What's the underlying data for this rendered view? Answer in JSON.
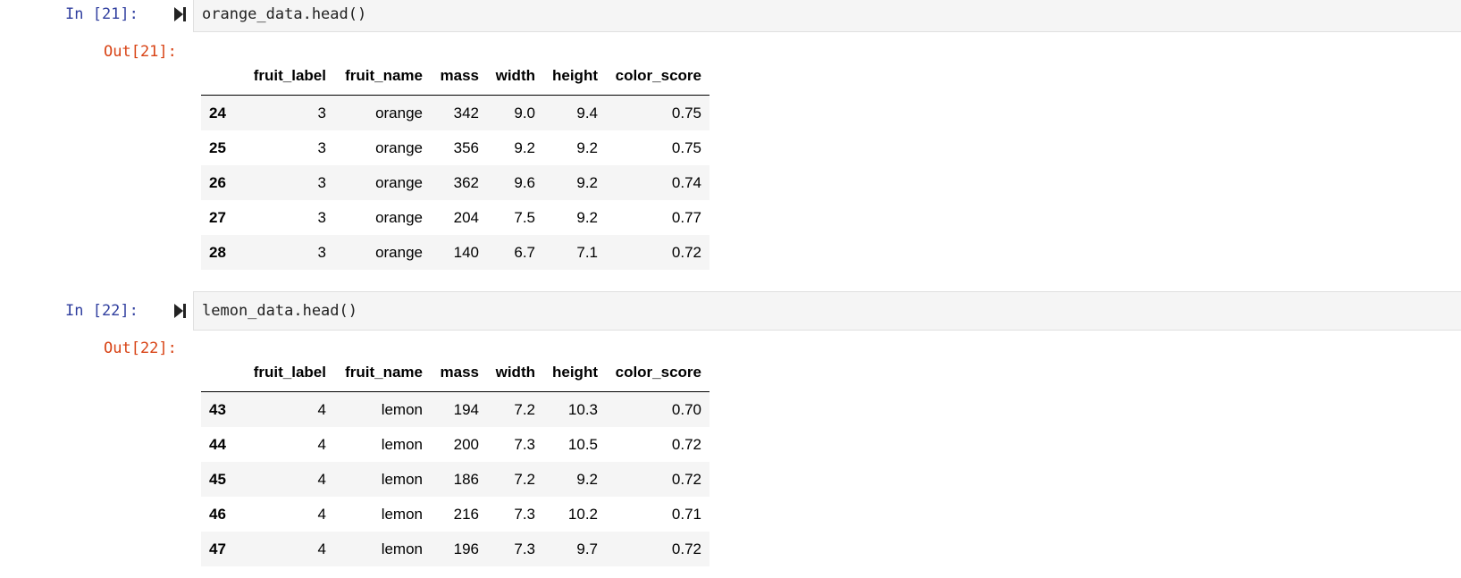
{
  "cells": [
    {
      "in_prompt": "In [21]:",
      "code": "orange_data.head()",
      "out_prompt": "Out[21]:",
      "columns": [
        "fruit_label",
        "fruit_name",
        "mass",
        "width",
        "height",
        "color_score"
      ],
      "rows": [
        {
          "index": "24",
          "fruit_label": "3",
          "fruit_name": "orange",
          "mass": "342",
          "width": "9.0",
          "height": "9.4",
          "color_score": "0.75"
        },
        {
          "index": "25",
          "fruit_label": "3",
          "fruit_name": "orange",
          "mass": "356",
          "width": "9.2",
          "height": "9.2",
          "color_score": "0.75"
        },
        {
          "index": "26",
          "fruit_label": "3",
          "fruit_name": "orange",
          "mass": "362",
          "width": "9.6",
          "height": "9.2",
          "color_score": "0.74"
        },
        {
          "index": "27",
          "fruit_label": "3",
          "fruit_name": "orange",
          "mass": "204",
          "width": "7.5",
          "height": "9.2",
          "color_score": "0.77"
        },
        {
          "index": "28",
          "fruit_label": "3",
          "fruit_name": "orange",
          "mass": "140",
          "width": "6.7",
          "height": "7.1",
          "color_score": "0.72"
        }
      ]
    },
    {
      "in_prompt": "In [22]:",
      "code": "lemon_data.head()",
      "out_prompt": "Out[22]:",
      "columns": [
        "fruit_label",
        "fruit_name",
        "mass",
        "width",
        "height",
        "color_score"
      ],
      "rows": [
        {
          "index": "43",
          "fruit_label": "4",
          "fruit_name": "lemon",
          "mass": "194",
          "width": "7.2",
          "height": "10.3",
          "color_score": "0.70"
        },
        {
          "index": "44",
          "fruit_label": "4",
          "fruit_name": "lemon",
          "mass": "200",
          "width": "7.3",
          "height": "10.5",
          "color_score": "0.72"
        },
        {
          "index": "45",
          "fruit_label": "4",
          "fruit_name": "lemon",
          "mass": "186",
          "width": "7.2",
          "height": "9.2",
          "color_score": "0.72"
        },
        {
          "index": "46",
          "fruit_label": "4",
          "fruit_name": "lemon",
          "mass": "216",
          "width": "7.3",
          "height": "10.2",
          "color_score": "0.71"
        },
        {
          "index": "47",
          "fruit_label": "4",
          "fruit_name": "lemon",
          "mass": "196",
          "width": "7.3",
          "height": "9.7",
          "color_score": "0.72"
        }
      ]
    }
  ],
  "colors": {
    "in_prompt": "#303f9f",
    "out_prompt": "#d84315",
    "code_bg": "#f5f5f5",
    "row_stripe": "#f5f5f5"
  },
  "icons": {
    "run": "run-cell-icon"
  }
}
